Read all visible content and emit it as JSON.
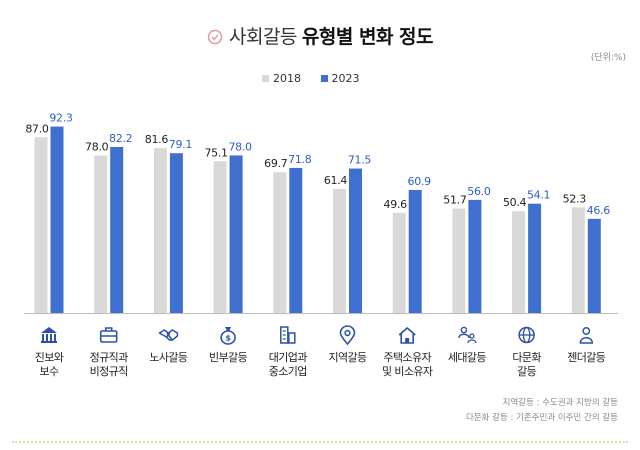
{
  "title": {
    "light": "사회갈등",
    "bold": "유형별 변화 정도"
  },
  "unit_label": "(단위:%)",
  "colors": {
    "series_2018": "#d9d9d9",
    "series_2023": "#3f6fcf",
    "label_2018": "#222222",
    "label_2023": "#2f5fc4",
    "icon": "#2b52a6",
    "title_check": "#d99a9a"
  },
  "chart_data": {
    "type": "bar",
    "title": "사회갈등 유형별 변화 정도",
    "xlabel": "",
    "ylabel": "",
    "ylim": [
      0,
      100
    ],
    "grid": false,
    "legend_position": "top",
    "categories": [
      [
        "진보와",
        "보수"
      ],
      [
        "정규직과",
        "비정규직"
      ],
      [
        "노사갈등"
      ],
      [
        "빈부갈등"
      ],
      [
        "대기업과",
        "중소기업"
      ],
      [
        "지역갈등"
      ],
      [
        "주택소유자",
        "및 비소유자"
      ],
      [
        "세대갈등"
      ],
      [
        "다문화",
        "갈등"
      ],
      [
        "젠더갈등"
      ]
    ],
    "icons": [
      "institution-icon",
      "briefcase-icon",
      "handshake-icon",
      "money-bag-icon",
      "buildings-icon",
      "location-pin-icon",
      "house-icon",
      "generations-icon",
      "globe-icon",
      "person-icon"
    ],
    "series": [
      {
        "name": "2018",
        "values": [
          87.0,
          78.0,
          81.6,
          75.1,
          69.7,
          61.4,
          49.6,
          51.7,
          50.4,
          52.3
        ],
        "labels": [
          "87.0",
          "78.0",
          "81.6",
          "75.1",
          "69.7",
          "61.4",
          "49.6",
          "51.7",
          "50.4",
          "52.3"
        ]
      },
      {
        "name": "2023",
        "values": [
          92.3,
          82.2,
          79.1,
          78.0,
          71.8,
          71.5,
          60.9,
          56.0,
          54.1,
          46.6
        ],
        "labels": [
          "92.3",
          "82.2",
          "79.1",
          "78.0",
          "71.8",
          "71.5",
          "60.9",
          "56.0",
          "54.1",
          "46.6"
        ]
      }
    ]
  },
  "footnotes": [
    "지역갈등 : 수도권과 지방의 갈등",
    "다문화 갈등 : 기존주민과 이주민 간의 갈등"
  ]
}
